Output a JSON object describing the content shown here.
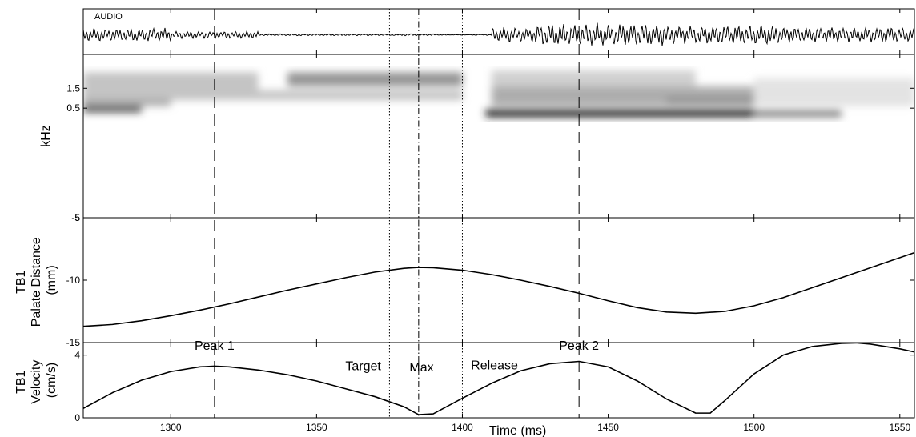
{
  "chart_data": {
    "type": "line",
    "x_range": [
      1270,
      1555
    ],
    "xlabel": "Time (ms)",
    "x_ticks": [
      1300,
      1350,
      1400,
      1450,
      1500,
      1550
    ],
    "markers": {
      "dashed": [
        1315,
        1440
      ],
      "dotted": [
        1375,
        1400
      ],
      "dashdot": [
        1385
      ]
    },
    "annotations": [
      {
        "text": "Peak 1",
        "x": 1315,
        "y": 4.35
      },
      {
        "text": "Target",
        "x": 1366,
        "y": 3.05
      },
      {
        "text": "Max",
        "x": 1386,
        "y": 2.95
      },
      {
        "text": "Release",
        "x": 1411,
        "y": 3.1
      },
      {
        "text": "Peak 2",
        "x": 1440,
        "y": 4.35
      }
    ],
    "panels": [
      {
        "id": "audio",
        "title": "AUDIO",
        "type": "waveform",
        "segments": [
          {
            "x": [
              1270,
              1300
            ],
            "amplitude": 0.55
          },
          {
            "x": [
              1300,
              1330
            ],
            "amplitude": 0.3
          },
          {
            "x": [
              1330,
              1390
            ],
            "amplitude": 0.07
          },
          {
            "x": [
              1390,
              1410
            ],
            "amplitude": 0.03
          },
          {
            "x": [
              1410,
              1425
            ],
            "amplitude": 0.6
          },
          {
            "x": [
              1425,
              1470
            ],
            "amplitude": 0.95
          },
          {
            "x": [
              1470,
              1510
            ],
            "amplitude": 0.8
          },
          {
            "x": [
              1510,
              1555
            ],
            "amplitude": 0.65
          }
        ]
      },
      {
        "id": "spectrogram",
        "type": "heatmap",
        "ylabel": "kHz",
        "ylim": [
          -5,
          3.2
        ],
        "y_ticks": [
          -5,
          0.5,
          1.5
        ],
        "regions": [
          {
            "x": [
              1270,
              1290
            ],
            "y": [
              0.3,
              0.6
            ],
            "intensity": 0.85
          },
          {
            "x": [
              1270,
              1300
            ],
            "y": [
              0.6,
              1.0
            ],
            "intensity": 0.35
          },
          {
            "x": [
              1270,
              1330
            ],
            "y": [
              1.0,
              2.3
            ],
            "intensity": 0.25
          },
          {
            "x": [
              1340,
              1400
            ],
            "y": [
              1.6,
              2.3
            ],
            "intensity": 0.45
          },
          {
            "x": [
              1300,
              1400
            ],
            "y": [
              0.9,
              1.4
            ],
            "intensity": 0.25
          },
          {
            "x": [
              1408,
              1500
            ],
            "y": [
              0.05,
              0.45
            ],
            "intensity": 0.95
          },
          {
            "x": [
              1500,
              1530
            ],
            "y": [
              0.05,
              0.4
            ],
            "intensity": 0.55
          },
          {
            "x": [
              1410,
              1500
            ],
            "y": [
              0.6,
              1.6
            ],
            "intensity": 0.35
          },
          {
            "x": [
              1470,
              1500
            ],
            "y": [
              0.8,
              1.0
            ],
            "intensity": 0.55
          },
          {
            "x": [
              1410,
              1480
            ],
            "y": [
              1.6,
              2.4
            ],
            "intensity": 0.2
          },
          {
            "x": [
              1500,
              1555
            ],
            "y": [
              0.6,
              2.0
            ],
            "intensity": 0.12
          }
        ]
      },
      {
        "id": "palate",
        "type": "line",
        "ylabel_lines": [
          "TB1",
          "Palate Distance",
          "(mm)"
        ],
        "ylim": [
          -15,
          -5
        ],
        "y_ticks": [
          -15,
          -10,
          -5
        ],
        "x": [
          1270,
          1280,
          1290,
          1300,
          1310,
          1320,
          1330,
          1340,
          1350,
          1360,
          1370,
          1380,
          1385,
          1390,
          1400,
          1410,
          1420,
          1430,
          1440,
          1450,
          1460,
          1470,
          1480,
          1490,
          1500,
          1510,
          1520,
          1530,
          1540,
          1550,
          1555
        ],
        "values": [
          -13.7,
          -13.55,
          -13.25,
          -12.85,
          -12.4,
          -11.9,
          -11.35,
          -10.8,
          -10.3,
          -9.8,
          -9.35,
          -9.05,
          -8.98,
          -9.0,
          -9.2,
          -9.55,
          -10.0,
          -10.5,
          -11.05,
          -11.65,
          -12.2,
          -12.55,
          -12.65,
          -12.5,
          -12.05,
          -11.4,
          -10.6,
          -9.8,
          -9.0,
          -8.2,
          -7.8
        ]
      },
      {
        "id": "velocity",
        "type": "line",
        "ylabel_lines": [
          "TB1",
          "Velocity",
          "(cm/s)"
        ],
        "ylim": [
          0,
          4.8
        ],
        "y_ticks": [
          0,
          4
        ],
        "x": [
          1270,
          1280,
          1290,
          1300,
          1310,
          1315,
          1320,
          1330,
          1340,
          1350,
          1360,
          1370,
          1380,
          1385,
          1390,
          1395,
          1400,
          1410,
          1420,
          1430,
          1440,
          1450,
          1460,
          1470,
          1480,
          1485,
          1490,
          1500,
          1510,
          1520,
          1530,
          1535,
          1540,
          1550,
          1555
        ],
        "values": [
          0.6,
          1.6,
          2.4,
          2.95,
          3.25,
          3.3,
          3.25,
          3.05,
          2.75,
          2.35,
          1.85,
          1.35,
          0.7,
          0.2,
          0.25,
          0.75,
          1.25,
          2.2,
          3.0,
          3.45,
          3.6,
          3.25,
          2.35,
          1.2,
          0.3,
          0.3,
          1.1,
          2.8,
          4.0,
          4.55,
          4.75,
          4.78,
          4.7,
          4.4,
          4.2
        ]
      }
    ]
  }
}
